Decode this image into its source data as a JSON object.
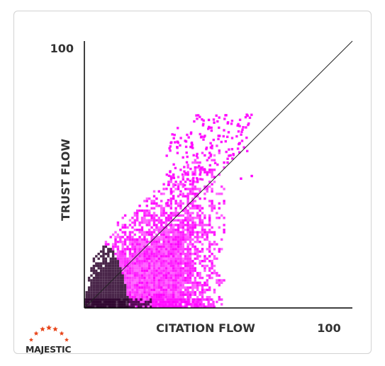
{
  "chart_data": {
    "type": "heatmap",
    "xlabel": "CITATION FLOW",
    "ylabel": "TRUST FLOW",
    "x_tick_max_label": "100",
    "y_tick_max_label": "100",
    "xlim": [
      0,
      100
    ],
    "ylim": [
      0,
      100
    ],
    "reference_line": {
      "x": [
        0,
        100
      ],
      "y": [
        0,
        100
      ]
    },
    "density_color": "#ff00ff",
    "dense_color": "#2a002a",
    "grid": false,
    "legend": "none"
  },
  "logo": {
    "text": "MAJESTIC",
    "star_color": "#e8461b"
  }
}
